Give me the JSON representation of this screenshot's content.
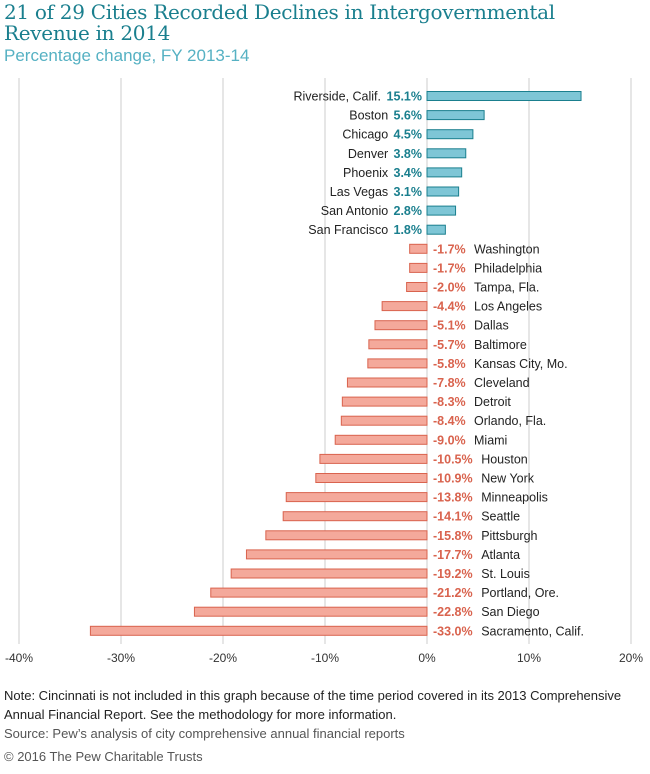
{
  "title": "21 of 29 Cities Recorded Declines in Intergovernmental Revenue in 2014",
  "subtitle": "Percentage change, FY 2013-14",
  "note": "Note: Cincinnati is not included in this graph because of the time period covered in its 2013 Comprehensive Annual Financial Report. See the methodology for more information.",
  "source": "Source: Pew’s analysis of city comprehensive annual financial reports",
  "copyright": "© 2016 The Pew Charitable Trusts",
  "colors": {
    "positive_fill": "#7ec6d6",
    "positive_stroke": "#1a7f8e",
    "positive_label": "#1a7f8e",
    "negative_fill": "#f4a99b",
    "negative_stroke": "#d9634e",
    "negative_label": "#d9634e",
    "grid": "#cccccc"
  },
  "chart_data": {
    "type": "bar",
    "orientation": "horizontal",
    "title": "21 of 29 Cities Recorded Declines in Intergovernmental Revenue in 2014",
    "subtitle": "Percentage change, FY 2013-14",
    "xlim": [
      -40,
      20
    ],
    "xticks": [
      -40,
      -30,
      -20,
      -10,
      0,
      10,
      20
    ],
    "xtick_labels": [
      "-40%",
      "-30%",
      "-20%",
      "-10%",
      "0%",
      "10%",
      "20%"
    ],
    "grid": true,
    "categories": [
      "Riverside, Calif.",
      "Boston",
      "Chicago",
      "Denver",
      "Phoenix",
      "Las Vegas",
      "San Antonio",
      "San Francisco",
      "Washington",
      "Philadelphia",
      "Tampa, Fla.",
      "Los Angeles",
      "Dallas",
      "Baltimore",
      "Kansas City, Mo.",
      "Cleveland",
      "Detroit",
      "Orlando, Fla.",
      "Miami",
      "Houston",
      "New York",
      "Minneapolis",
      "Seattle",
      "Pittsburgh",
      "Atlanta",
      "St. Louis",
      "Portland, Ore.",
      "San Diego",
      "Sacramento, Calif."
    ],
    "values": [
      15.1,
      5.6,
      4.5,
      3.8,
      3.4,
      3.1,
      2.8,
      1.8,
      -1.7,
      -1.7,
      -2.0,
      -4.4,
      -5.1,
      -5.7,
      -5.8,
      -7.8,
      -8.3,
      -8.4,
      -9.0,
      -10.5,
      -10.9,
      -13.8,
      -14.1,
      -15.8,
      -17.7,
      -19.2,
      -21.2,
      -22.8,
      -33.0
    ],
    "value_labels": [
      "15.1%",
      "5.6%",
      "4.5%",
      "3.8%",
      "3.4%",
      "3.1%",
      "2.8%",
      "1.8%",
      "-1.7%",
      "-1.7%",
      "-2.0%",
      "-4.4%",
      "-5.1%",
      "-5.7%",
      "-5.8%",
      "-7.8%",
      "-8.3%",
      "-8.4%",
      "-9.0%",
      "-10.5%",
      "-10.9%",
      "-13.8%",
      "-14.1%",
      "-15.8%",
      "-17.7%",
      "-19.2%",
      "-21.2%",
      "-22.8%",
      "-33.0%"
    ]
  }
}
